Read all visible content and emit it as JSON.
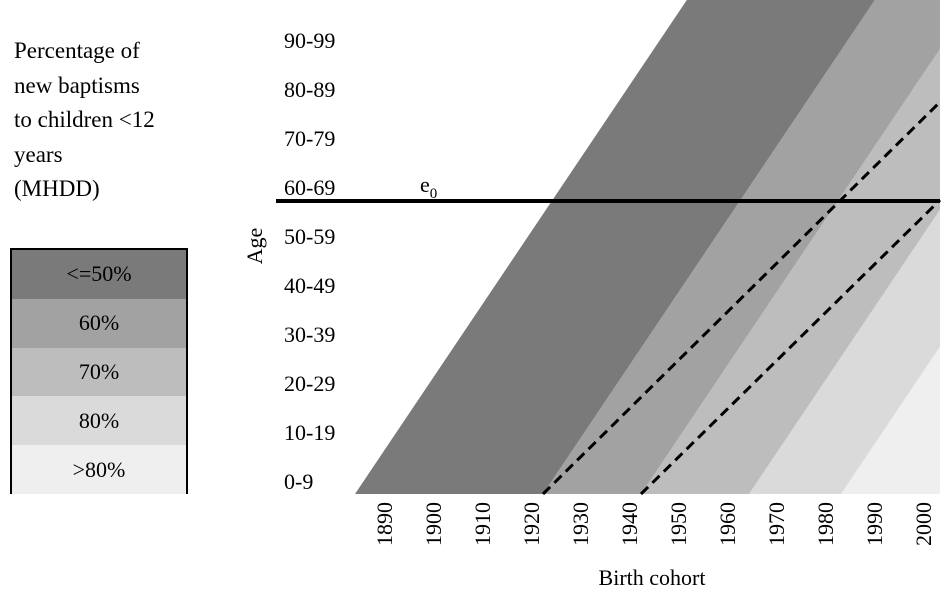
{
  "legend": {
    "title_lines": [
      "Percentage of",
      "new baptisms",
      "to children <12",
      "years",
      "(MHDD)"
    ],
    "items": [
      {
        "label": "<=50%",
        "color": "#7a7a7a"
      },
      {
        "label": "60%",
        "color": "#a2a2a2"
      },
      {
        "label": "70%",
        "color": "#bdbdbd"
      },
      {
        "label": "80%",
        "color": "#dadada"
      },
      {
        "label": ">80%",
        "color": "#efefef"
      }
    ]
  },
  "chart_data": {
    "type": "diagram",
    "xlabel": "Birth cohort",
    "ylabel": "Age",
    "x_ticks": [
      "1890",
      "1900",
      "1910",
      "1920",
      "1930",
      "1940",
      "1950",
      "1960",
      "1970",
      "1980",
      "1990",
      "2000"
    ],
    "y_ticks": [
      "0-9",
      "10-19",
      "20-29",
      "30-39",
      "40-49",
      "50-59",
      "60-69",
      "70-79",
      "80-89",
      "90-99"
    ],
    "e0_label": "e",
    "e0_subscript": "0"
  }
}
